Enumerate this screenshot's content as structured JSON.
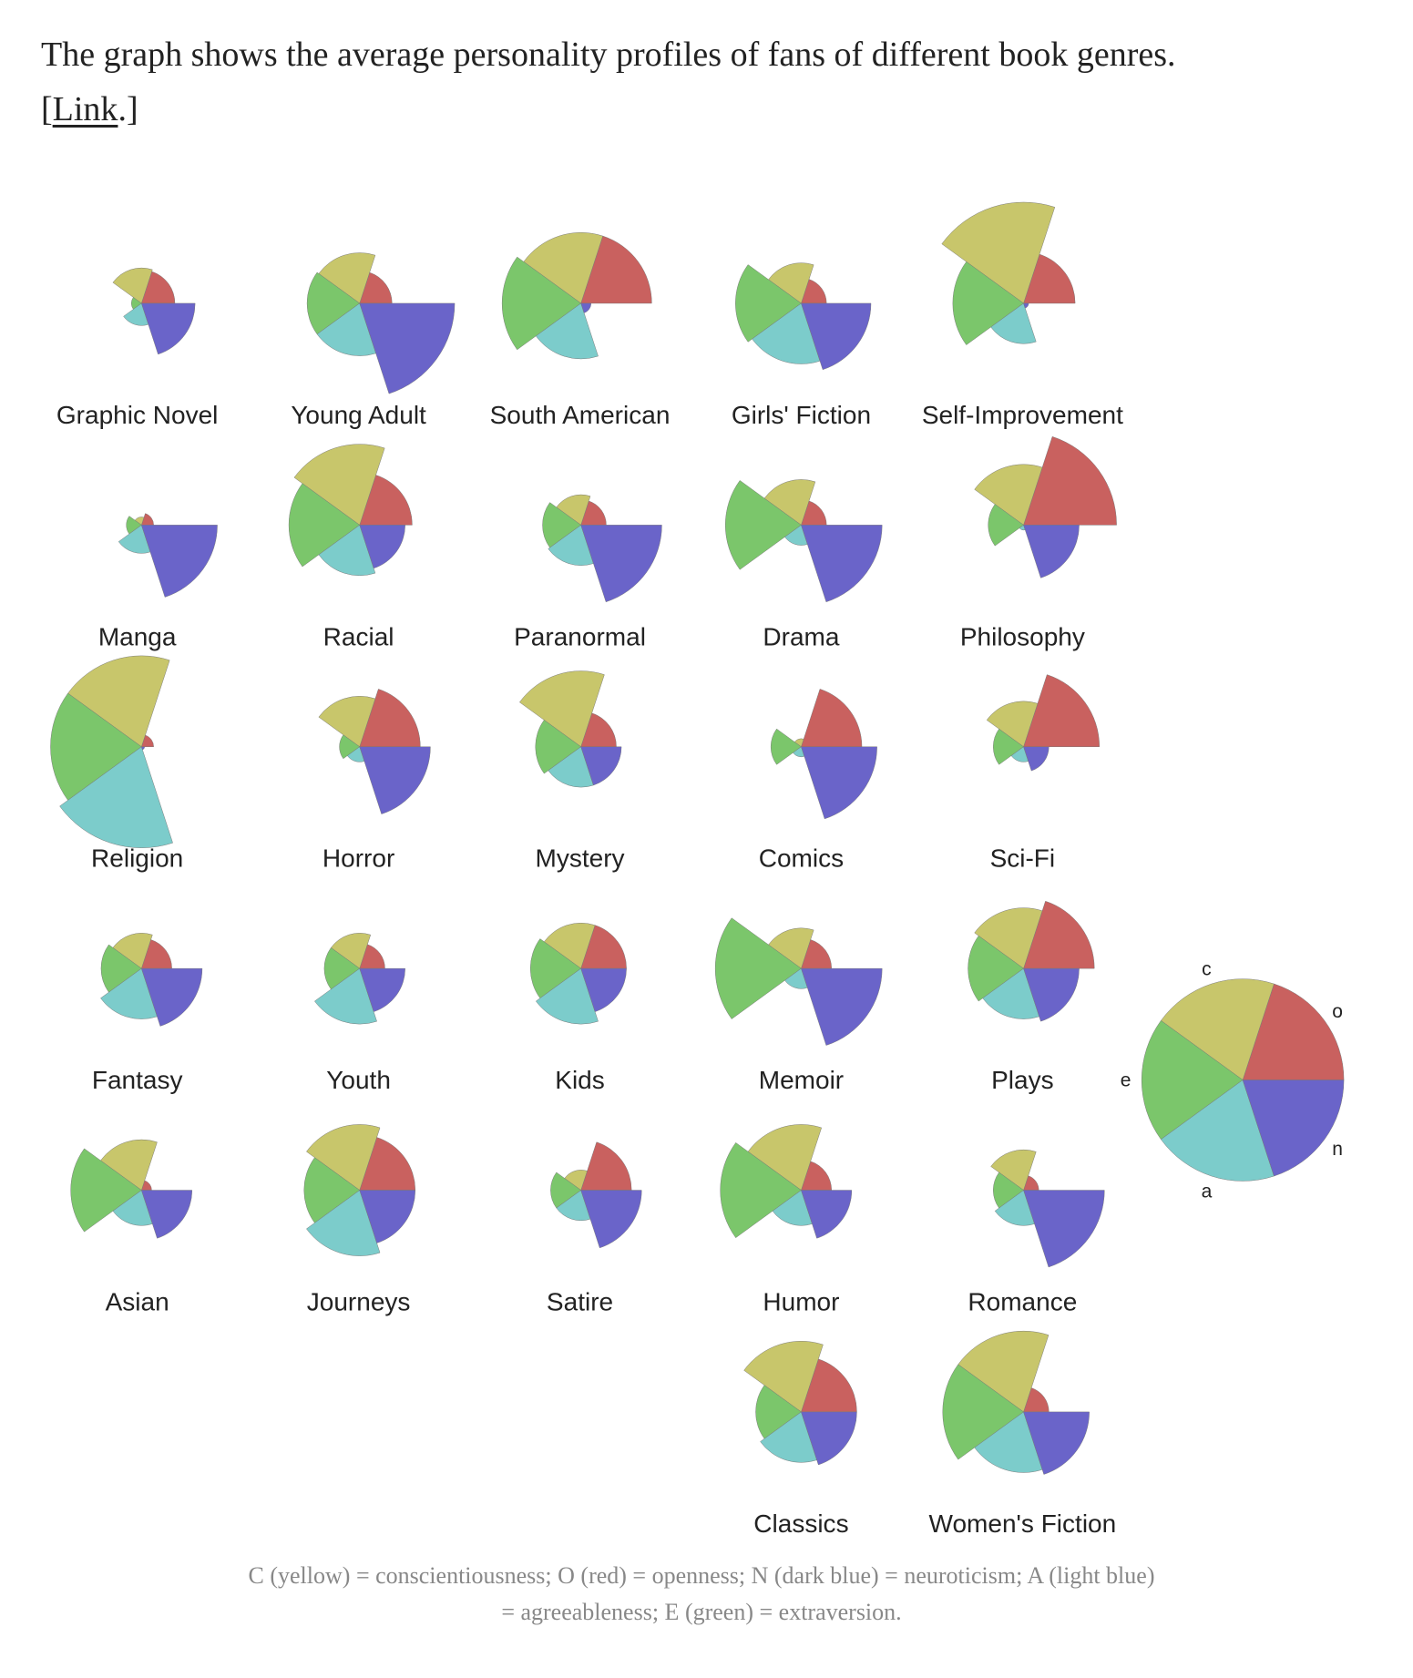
{
  "intro": "The graph shows the average personality profiles of fans of different book genres.",
  "link_prefix": "[",
  "link": "Link",
  "link_suffix": ".]",
  "caption": "C (yellow) = conscientiousness; O (red) = openness; N (dark blue) = neuroticism; A (light blue) = agreeableness; E (green) = extraversion.",
  "chart_data": {
    "type": "polar_area",
    "categories": [
      "o",
      "c",
      "e",
      "a",
      "n"
    ],
    "colors": [
      "#c9615f",
      "#c8c66b",
      "#7bc66b",
      "#7ccccb",
      "#6a64c9"
    ],
    "rlim": [
      0,
      100
    ],
    "series": [
      {
        "name": "Graphic Novel",
        "values": [
          33,
          35,
          10,
          22,
          53
        ]
      },
      {
        "name": "Young Adult",
        "values": [
          32,
          50,
          52,
          52,
          94
        ]
      },
      {
        "name": "South American",
        "values": [
          70,
          70,
          78,
          55,
          10
        ]
      },
      {
        "name": "Girls' Fiction",
        "values": [
          25,
          40,
          65,
          60,
          69
        ]
      },
      {
        "name": "Self-Improvement",
        "values": [
          51,
          100,
          70,
          40,
          5
        ]
      },
      {
        "name": "Manga",
        "values": [
          12,
          8,
          15,
          28,
          75
        ]
      },
      {
        "name": "Racial",
        "values": [
          52,
          80,
          70,
          50,
          45
        ]
      },
      {
        "name": "Paranormal",
        "values": [
          25,
          30,
          38,
          40,
          80
        ]
      },
      {
        "name": "Drama",
        "values": [
          25,
          45,
          75,
          20,
          80
        ]
      },
      {
        "name": "Philosophy",
        "values": [
          92,
          60,
          35,
          5,
          55
        ]
      },
      {
        "name": "Religion",
        "values": [
          12,
          90,
          90,
          100,
          3
        ]
      },
      {
        "name": "Horror",
        "values": [
          60,
          50,
          20,
          15,
          70
        ]
      },
      {
        "name": "Mystery",
        "values": [
          35,
          75,
          45,
          40,
          40
        ]
      },
      {
        "name": "Comics",
        "values": [
          60,
          8,
          30,
          10,
          75
        ]
      },
      {
        "name": "Sci-Fi",
        "values": [
          75,
          45,
          30,
          15,
          25
        ]
      },
      {
        "name": "Fantasy",
        "values": [
          30,
          35,
          40,
          50,
          60
        ]
      },
      {
        "name": "Youth",
        "values": [
          25,
          35,
          35,
          55,
          45
        ]
      },
      {
        "name": "Kids",
        "values": [
          45,
          45,
          50,
          55,
          45
        ]
      },
      {
        "name": "Memoir",
        "values": [
          30,
          40,
          85,
          20,
          80
        ]
      },
      {
        "name": "Plays",
        "values": [
          70,
          60,
          55,
          50,
          55
        ]
      },
      {
        "name": "Asian",
        "values": [
          10,
          50,
          70,
          35,
          50
        ]
      },
      {
        "name": "Journeys",
        "values": [
          55,
          65,
          55,
          65,
          55
        ]
      },
      {
        "name": "Satire",
        "values": [
          50,
          20,
          30,
          30,
          60
        ]
      },
      {
        "name": "Humor",
        "values": [
          30,
          65,
          80,
          35,
          50
        ]
      },
      {
        "name": "Romance",
        "values": [
          15,
          40,
          30,
          35,
          80
        ]
      },
      {
        "name": "Classics",
        "values": [
          55,
          70,
          45,
          50,
          55
        ]
      },
      {
        "name": "Women's Fiction",
        "values": [
          25,
          80,
          80,
          60,
          65
        ]
      }
    ]
  }
}
